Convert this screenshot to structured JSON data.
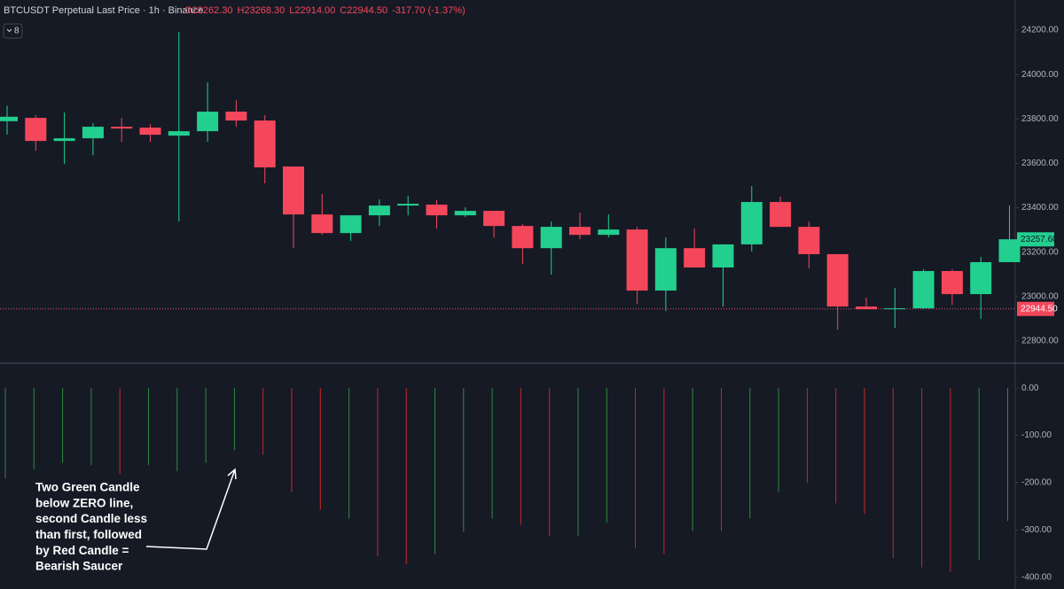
{
  "header": {
    "title": "BTCUSDT Perpetual Last Price · 1h · Binance",
    "ohlc": [
      "O23262.30",
      "H23268.30",
      "L22914.00",
      "C22944.50",
      "-317.70 (-1.37%)"
    ],
    "indicator_count": "8"
  },
  "annotation": {
    "lines": [
      "Two Green Candle",
      "below ZERO line,",
      "second Candle less",
      "than first, followed",
      "by Red Candle =",
      "Bearish Saucer"
    ]
  },
  "chart_data": [
    {
      "type": "candlestick",
      "up_color": "#22cf8f",
      "down_color": "#f5475c",
      "grid": false,
      "ylim": [
        22700,
        24336
      ],
      "yticks": [
        {
          "value": 22800,
          "label": "22800.00"
        },
        {
          "value": 23000,
          "label": "23000.00"
        },
        {
          "value": 23200,
          "label": "23200.00"
        },
        {
          "value": 23400,
          "label": "23400.00"
        },
        {
          "value": 23600,
          "label": "23600.00"
        },
        {
          "value": 23800,
          "label": "23800.00"
        },
        {
          "value": 24000,
          "label": "24000.00"
        },
        {
          "value": 24200,
          "label": "24200.00"
        }
      ],
      "open": [
        23790,
        23805,
        23701,
        23713,
        23765,
        23761,
        23725,
        23745,
        23833,
        23793,
        23586,
        23370,
        23286,
        23366,
        23410,
        23414,
        23366,
        23386,
        23318,
        23218,
        23314,
        23278,
        23302,
        23027,
        23218,
        23131,
        23235,
        23426,
        23314,
        23191,
        22955,
        22943,
        22947,
        23115,
        23011,
        23155
      ],
      "high": [
        23860,
        23817,
        23829,
        23781,
        23805,
        23777,
        24192,
        23965,
        23885,
        23817,
        23586,
        23462,
        23366,
        23438,
        23454,
        23434,
        23402,
        23386,
        23326,
        23338,
        23378,
        23370,
        23314,
        23266,
        23306,
        23235,
        23498,
        23450,
        23338,
        23191,
        22995,
        23039,
        23123,
        23123,
        23179,
        23410
      ],
      "low": [
        23730,
        23657,
        23598,
        23637,
        23697,
        23697,
        23338,
        23697,
        23765,
        23510,
        23218,
        23278,
        23250,
        23318,
        23366,
        23306,
        23358,
        23266,
        23147,
        23099,
        23258,
        23266,
        22967,
        22935,
        23131,
        22955,
        23203,
        23314,
        23127,
        22851,
        22943,
        22859,
        22943,
        22963,
        22899,
        23155
      ],
      "close": [
        23810,
        23701,
        23713,
        23765,
        23757,
        23729,
        23745,
        23833,
        23793,
        23582,
        23370,
        23286,
        23366,
        23410,
        23418,
        23366,
        23386,
        23318,
        23218,
        23314,
        23278,
        23302,
        23027,
        23218,
        23131,
        23235,
        23426,
        23314,
        23191,
        22955,
        22943,
        22947,
        23115,
        23011,
        23155,
        23258
      ],
      "price_marker": {
        "value": 23257.6,
        "label": "23257.60",
        "color": "#22cf8f"
      },
      "last_price": {
        "value": 22944.5,
        "label": "22944.50",
        "color": "#f5475c"
      }
    },
    {
      "type": "histogram",
      "grid": false,
      "ylim": [
        -425,
        49
      ],
      "yticks": [
        {
          "value": -400,
          "label": "-400.00"
        },
        {
          "value": -300,
          "label": "-300.00"
        },
        {
          "value": -200,
          "label": "-200.00"
        },
        {
          "value": -100,
          "label": "-100.00"
        },
        {
          "value": 0,
          "label": "0.00"
        }
      ],
      "values": [
        -191,
        -172,
        -158,
        -163,
        -182,
        -163,
        -176,
        -158,
        -131,
        -141,
        -220,
        -257,
        -276,
        -356,
        -373,
        -351,
        -304,
        -276,
        -289,
        -313,
        -313,
        -285,
        -338,
        -351,
        -302,
        -302,
        -276,
        -220,
        -201,
        -244,
        -266,
        -360,
        -379,
        -388,
        -364,
        -281
      ],
      "colors": [
        "#2e8b3e",
        "#2e8b3e",
        "#2e8b3e",
        "#2e8b3e",
        "#c62828",
        "#2e8b3e",
        "#2e8b3e",
        "#2e8b3e",
        "#2e8b3e",
        "#c62828",
        "#c62828",
        "#c62828",
        "#2e8b3e",
        "#c62828",
        "#c62828",
        "#2e8b3e",
        "#2e8b3e",
        "#2e8b3e",
        "#c62828",
        "#c62828",
        "#2e8b3e",
        "#2e8b3e",
        "#c62828",
        "#c62828",
        "#2e8b3e",
        "#c62828",
        "#2e8b3e",
        "#2e8b3e",
        "#c62828",
        "#c62828",
        "#c62828",
        "#c62828",
        "#c62828",
        "#c62828",
        "#2e8b3e",
        "#2e8b3e"
      ]
    }
  ]
}
